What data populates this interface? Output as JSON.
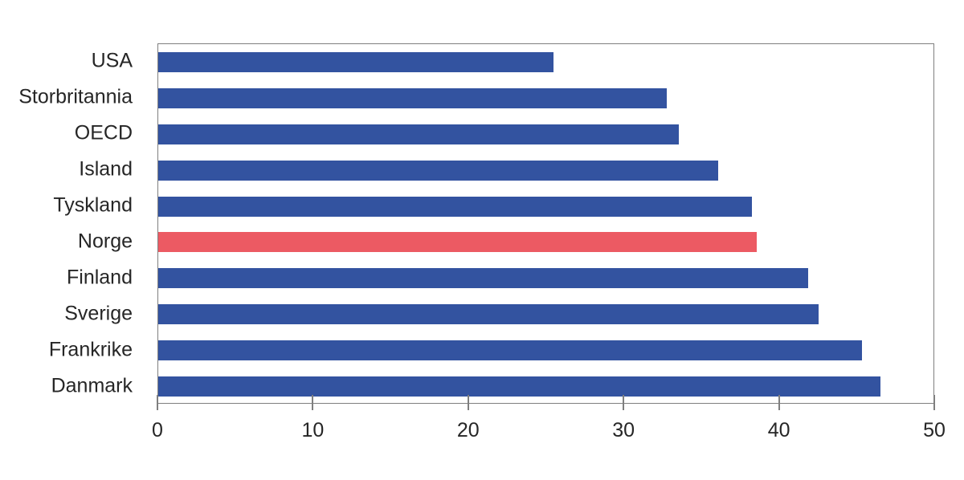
{
  "chart_data": {
    "type": "bar",
    "orientation": "horizontal",
    "title": "",
    "xlabel": "",
    "ylabel": "",
    "categories": [
      "USA",
      "Storbritannia",
      "OECD",
      "Island",
      "Tyskland",
      "Norge",
      "Finland",
      "Sverige",
      "Frankrike",
      "Danmark"
    ],
    "values": [
      25.5,
      32.8,
      33.6,
      36.1,
      38.3,
      38.6,
      41.9,
      42.6,
      45.4,
      46.6
    ],
    "highlight_category": "Norge",
    "xlim": [
      0,
      50
    ],
    "xticks": [
      0,
      10,
      20,
      30,
      40,
      50
    ],
    "grid": false,
    "legend": null,
    "colors": {
      "bar": "#3353A0",
      "highlight": "#EC5A63",
      "axis": "#7F7F7F",
      "text": "#262626",
      "background": "#FFFFFF"
    }
  }
}
